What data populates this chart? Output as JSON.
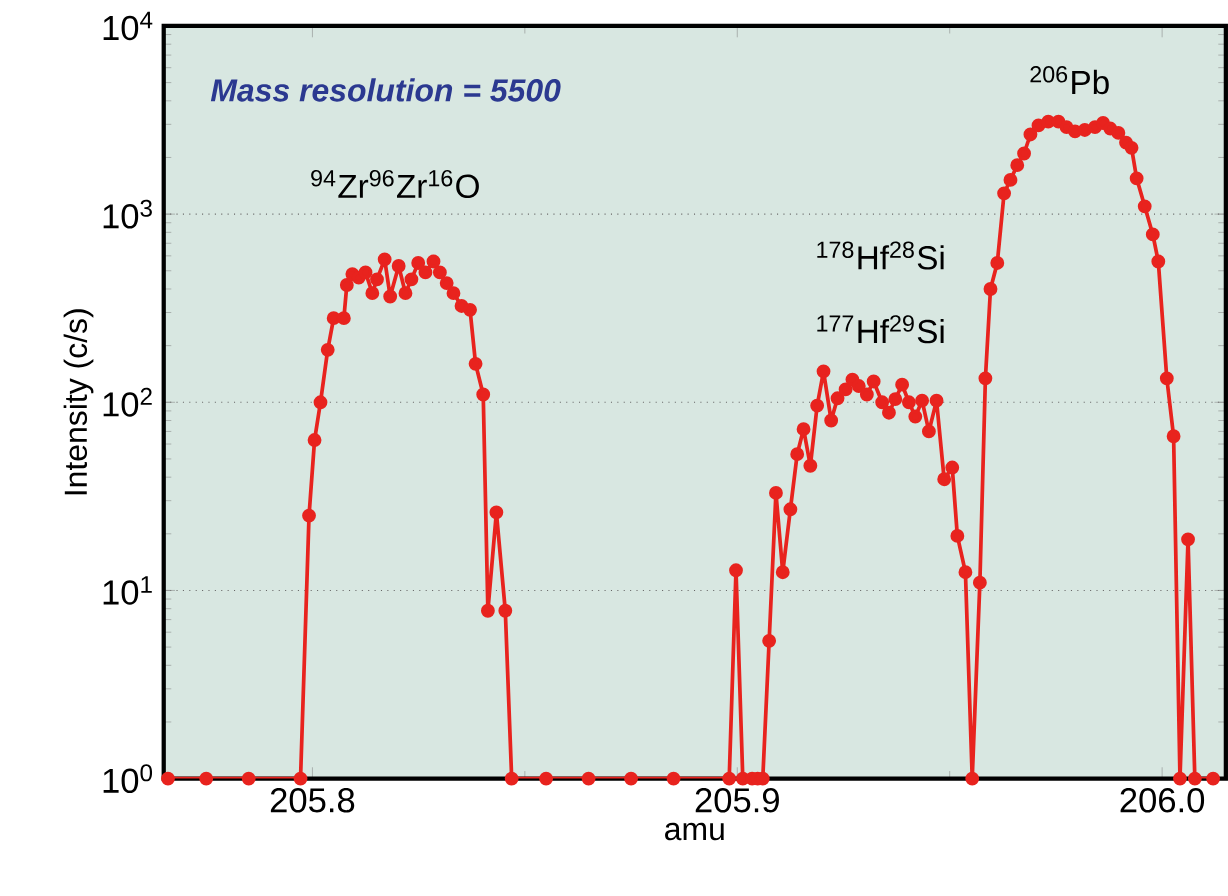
{
  "chart_data": {
    "type": "line",
    "xlabel": "amu",
    "ylabel": "Intensity (c/s)",
    "annotations": [
      "Mass resolution = 5500",
      "$^{94}$Zr$^{96}$Zr$^{16}$O",
      "$^{178}$Hf$^{28}$Si",
      "$^{177}$Hf$^{29}$Si",
      "$^{206}$Pb"
    ],
    "x": [
      205.766,
      205.775,
      205.785,
      205.7972,
      205.7992,
      205.8005,
      205.8019,
      205.8036,
      205.805,
      205.8074,
      205.8081,
      205.8094,
      205.8109,
      205.8125,
      205.8141,
      205.8152,
      205.817,
      205.8183,
      205.8203,
      205.8219,
      205.8233,
      205.8249,
      205.8266,
      205.8285,
      205.83,
      205.8316,
      205.8332,
      205.8351,
      205.8371,
      205.8384,
      205.8402,
      205.8413,
      205.8433,
      205.8454,
      205.8469,
      205.855,
      205.865,
      205.875,
      205.885,
      205.8981,
      205.8997,
      205.9013,
      205.9035,
      205.9048,
      205.906,
      205.9075,
      205.9091,
      205.9107,
      205.9125,
      205.9141,
      205.9156,
      205.9172,
      205.9188,
      205.9203,
      205.9221,
      205.9236,
      205.9255,
      205.9271,
      205.9286,
      205.9305,
      205.9321,
      205.9341,
      205.9357,
      205.9372,
      205.9388,
      205.9404,
      205.9419,
      205.9435,
      205.9451,
      205.9469,
      205.9487,
      205.9506,
      205.9518,
      205.9537,
      205.9553,
      205.9571,
      205.9584,
      205.9596,
      205.9612,
      205.9628,
      205.9643,
      205.9659,
      205.9675,
      205.969,
      205.9709,
      205.9732,
      205.9756,
      205.9775,
      205.9795,
      205.9818,
      205.9842,
      205.9861,
      205.9878,
      205.9897,
      205.9915,
      205.9928,
      205.994,
      205.9959,
      205.9978,
      205.9991,
      206.0011,
      206.0027,
      206.0042,
      206.0061,
      206.0077,
      206.012
    ],
    "series": [
      {
        "color": "#e8231e",
        "values": [
          1,
          1,
          1,
          1,
          25,
          63,
          100,
          190,
          280,
          280,
          420,
          480,
          460,
          490,
          380,
          450,
          575,
          365,
          530,
          380,
          450,
          550,
          490,
          560,
          490,
          430,
          380,
          325,
          310,
          160,
          110,
          7.8,
          26,
          7.8,
          1,
          1,
          1,
          1,
          1,
          1,
          12.8,
          1,
          1,
          1,
          1,
          5.4,
          33,
          12.5,
          27,
          53,
          72,
          46,
          96,
          146,
          80,
          105,
          117,
          132,
          122,
          110,
          129,
          100,
          88,
          104,
          124,
          100,
          84,
          102,
          70,
          102,
          39,
          45,
          19.5,
          12.5,
          1,
          11,
          134,
          400,
          550,
          1290,
          1520,
          1820,
          2100,
          2650,
          2960,
          3100,
          3100,
          2900,
          2750,
          2800,
          2900,
          3050,
          2850,
          2700,
          2400,
          2250,
          1550,
          1100,
          780,
          560,
          134,
          66,
          1,
          18.7,
          1,
          1
        ]
      }
    ],
    "xlim": [
      205.765,
      206.015
    ],
    "ylim": [
      1,
      10000
    ],
    "xticks": [
      205.8,
      205.9,
      {
        "value": 206,
        "label": "206.0"
      }
    ],
    "yticks": [
      {
        "value": 1,
        "label": "10$^{0}$"
      },
      {
        "value": 10,
        "label": "10$^{1}$"
      },
      {
        "value": 100,
        "label": "10$^{2}$"
      },
      {
        "value": 1000,
        "label": "10$^{3}$"
      },
      {
        "value": 10000,
        "label": "10$^{4}$"
      }
    ],
    "log": "y",
    "grid": "y",
    "marker": "circle",
    "line_style": "solid"
  }
}
